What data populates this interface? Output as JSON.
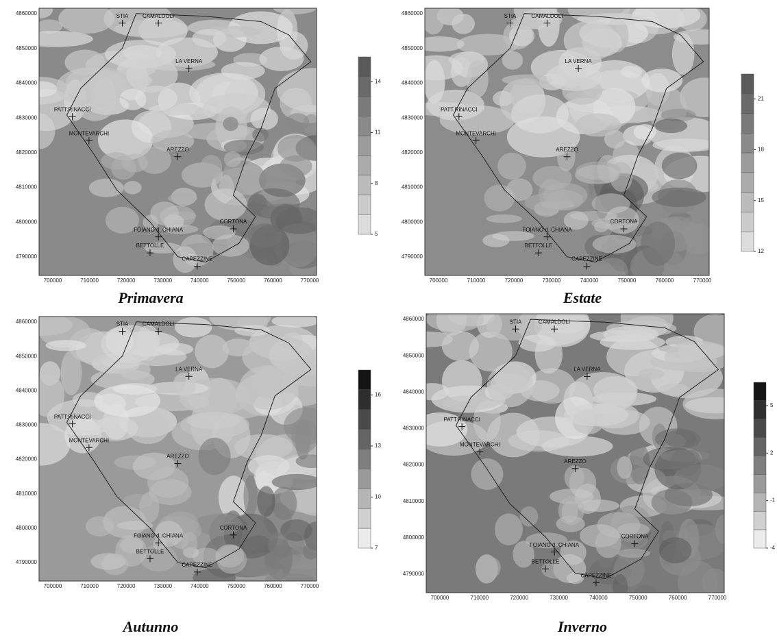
{
  "panels": [
    {
      "caption": "Primavera",
      "colorbar_ticks": [
        "14",
        "11",
        "8",
        "5"
      ]
    },
    {
      "caption": "Estate",
      "colorbar_ticks": [
        "21",
        "18",
        "15",
        "12"
      ]
    },
    {
      "caption": "Autunno",
      "colorbar_ticks": [
        "16",
        "13",
        "10",
        "7"
      ]
    },
    {
      "caption": "Inverno",
      "colorbar_ticks": [
        "5",
        "2",
        "-1",
        "-4"
      ]
    }
  ],
  "places": [
    "STIA",
    "CAMALDOLI",
    "LA VERNA",
    "PATT.RINACCI",
    "MONTEVARCHI",
    "AREZZO",
    "CORTONA",
    "FOIANO d. CHIANA",
    "BETTOLLE",
    "CAPEZZINE"
  ],
  "xticks": [
    "700000",
    "710000",
    "720000",
    "730000",
    "740000",
    "750000",
    "760000",
    "770000"
  ],
  "yticks": [
    "4860000",
    "4850000",
    "4840000",
    "4830000",
    "4820000",
    "4810000",
    "4800000",
    "4790000"
  ]
}
